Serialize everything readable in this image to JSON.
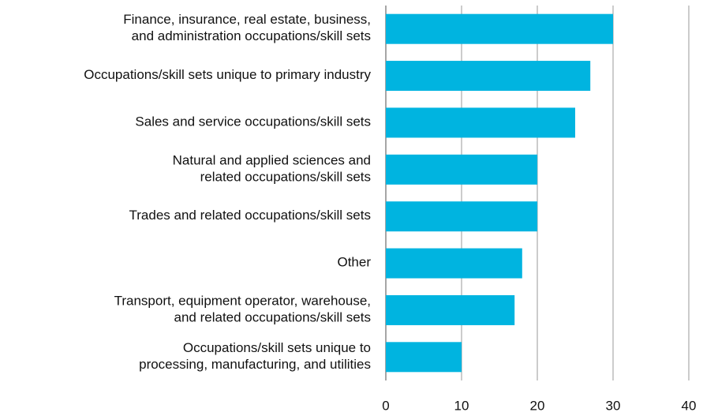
{
  "chart_data": {
    "type": "bar",
    "orientation": "horizontal",
    "categories": [
      [
        "Finance, insurance, real estate, business,",
        "and administration occupations/skill sets"
      ],
      [
        "Occupations/skill sets unique to primary industry"
      ],
      [
        "Sales and service occupations/skill sets"
      ],
      [
        "Natural and applied sciences and",
        "related occupations/skill sets"
      ],
      [
        "Trades and related occupations/skill sets"
      ],
      [
        "Other"
      ],
      [
        "Transport, equipment operator, warehouse,",
        "and related occupations/skill sets"
      ],
      [
        "Occupations/skill sets unique to",
        "processing, manufacturing, and utilities"
      ]
    ],
    "values": [
      30,
      27,
      25,
      20,
      20,
      18,
      17,
      10
    ],
    "color": "#00b4e0",
    "xlim": [
      0,
      40
    ],
    "xticks": [
      0,
      10,
      20,
      30,
      40
    ],
    "grid": true
  }
}
